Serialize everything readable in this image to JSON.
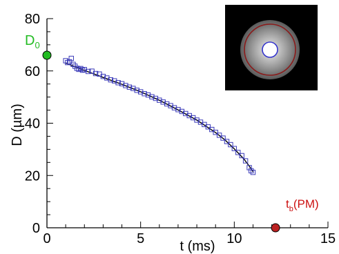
{
  "chart_data": {
    "type": "scatter",
    "title": "",
    "xlabel": "t (ms)",
    "ylabel": "D (µm)",
    "xlim": [
      0,
      15
    ],
    "ylim": [
      0,
      80
    ],
    "x_ticks": [
      0,
      5,
      10,
      15
    ],
    "y_ticks": [
      0,
      20,
      40,
      60,
      80
    ],
    "x_minor_step": 1,
    "y_minor_step": 5,
    "grid": false,
    "series": [
      {
        "marker": "square",
        "color": "#3a3ab8",
        "points": [
          [
            1.0,
            63.9
          ],
          [
            1.1,
            63.2
          ],
          [
            1.2,
            63.5
          ],
          [
            1.3,
            64.8
          ],
          [
            1.4,
            62.5
          ],
          [
            1.5,
            61.8
          ],
          [
            1.6,
            61.0
          ],
          [
            1.7,
            60.6
          ],
          [
            1.8,
            60.9
          ],
          [
            1.9,
            60.3
          ],
          [
            2.0,
            60.5
          ],
          [
            2.2,
            59.8
          ],
          [
            2.4,
            59.9
          ],
          [
            2.6,
            59.0
          ],
          [
            2.8,
            58.8
          ],
          [
            3.0,
            57.9
          ],
          [
            3.2,
            57.3
          ],
          [
            3.4,
            56.6
          ],
          [
            3.6,
            56.2
          ],
          [
            3.8,
            55.5
          ],
          [
            4.0,
            55.1
          ],
          [
            4.2,
            54.4
          ],
          [
            4.4,
            53.8
          ],
          [
            4.6,
            53.3
          ],
          [
            4.8,
            52.6
          ],
          [
            5.0,
            52.0
          ],
          [
            5.2,
            51.3
          ],
          [
            5.4,
            50.8
          ],
          [
            5.6,
            50.1
          ],
          [
            5.8,
            49.5
          ],
          [
            6.0,
            48.8
          ],
          [
            6.2,
            48.1
          ],
          [
            6.4,
            47.4
          ],
          [
            6.6,
            46.7
          ],
          [
            6.8,
            45.9
          ],
          [
            7.0,
            45.2
          ],
          [
            7.2,
            44.5
          ],
          [
            7.4,
            43.7
          ],
          [
            7.6,
            42.9
          ],
          [
            7.8,
            42.1
          ],
          [
            8.0,
            41.2
          ],
          [
            8.2,
            40.4
          ],
          [
            8.4,
            39.5
          ],
          [
            8.6,
            38.6
          ],
          [
            8.8,
            37.6
          ],
          [
            9.0,
            36.5
          ],
          [
            9.2,
            35.4
          ],
          [
            9.4,
            34.3
          ],
          [
            9.6,
            33.0
          ],
          [
            9.8,
            31.8
          ],
          [
            10.0,
            30.3
          ],
          [
            10.2,
            28.8
          ],
          [
            10.4,
            27.6
          ],
          [
            10.6,
            25.6
          ],
          [
            10.8,
            23.0
          ],
          [
            10.9,
            21.8
          ],
          [
            11.0,
            21.2
          ]
        ]
      },
      {
        "type": "line",
        "color": "#000000",
        "points": [
          [
            1.0,
            63.0
          ],
          [
            2.0,
            60.2
          ],
          [
            3.0,
            57.5
          ],
          [
            4.0,
            54.9
          ],
          [
            5.0,
            52.0
          ],
          [
            6.0,
            48.8
          ],
          [
            7.0,
            45.1
          ],
          [
            8.0,
            41.2
          ],
          [
            9.0,
            36.4
          ],
          [
            9.5,
            33.6
          ],
          [
            10.0,
            30.2
          ],
          [
            10.5,
            26.4
          ],
          [
            10.8,
            23.6
          ],
          [
            11.0,
            21.4
          ]
        ]
      }
    ],
    "special_points": [
      {
        "label": "D",
        "sub": "0",
        "x": 0,
        "y": 66,
        "color": "#22bb22",
        "label_color": "#22bb22"
      },
      {
        "label": "t",
        "sub": "b",
        "suffix": "(PM)",
        "x": 12.2,
        "y": 0,
        "color": "#bb2222",
        "label_color": "#cc1111"
      }
    ]
  },
  "inset": {
    "background": "#000000",
    "halo_color": "#9a9a9a",
    "ring_color": "#8b1a1a",
    "core_fill": "#ffffff",
    "core_stroke": "#3333cc"
  }
}
